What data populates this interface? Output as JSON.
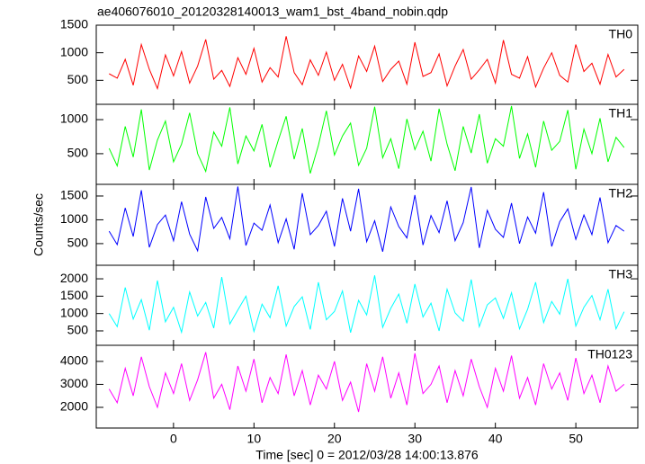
{
  "chart_data": {
    "type": "line",
    "title": "ae406076010_20120328140013_wam1_bst_4band_nobin.qdp",
    "xlabel": "Time [sec] 0 = 2012/03/28 14:00:13.876",
    "ylabel": "Counts/sec",
    "xlim": [
      -9.6,
      57.7
    ],
    "xticks": [
      0,
      10,
      20,
      30,
      40,
      50
    ],
    "x": [
      -8,
      -7,
      -6,
      -5,
      -4,
      -3,
      -2,
      -1,
      0,
      1,
      2,
      3,
      4,
      5,
      6,
      7,
      8,
      9,
      10,
      11,
      12,
      13,
      14,
      15,
      16,
      17,
      18,
      19,
      20,
      21,
      22,
      23,
      24,
      25,
      26,
      27,
      28,
      29,
      30,
      31,
      32,
      33,
      34,
      35,
      36,
      37,
      38,
      39,
      40,
      41,
      42,
      43,
      44,
      45,
      46,
      47,
      48,
      49,
      50,
      51,
      52,
      53,
      54,
      55,
      56
    ],
    "series": [
      {
        "name": "TH0",
        "color": "#ff0000",
        "ylim": [
          65,
          1500
        ],
        "yticks": [
          500,
          1000,
          1500
        ],
        "values": [
          620,
          540,
          880,
          410,
          1150,
          700,
          350,
          960,
          580,
          1020,
          450,
          760,
          1240,
          520,
          680,
          390,
          910,
          610,
          1080,
          470,
          730,
          560,
          1300,
          640,
          420,
          870,
          590,
          1010,
          500,
          790,
          360,
          940,
          660,
          1120,
          480,
          700,
          850,
          430,
          1190,
          570,
          640,
          980,
          400,
          760,
          1060,
          520,
          690,
          880,
          450,
          1230,
          610,
          540,
          930,
          380,
          720,
          1000,
          590,
          470,
          1150,
          660,
          810,
          430,
          970,
          560,
          700
        ]
      },
      {
        "name": "TH1",
        "color": "#00ff00",
        "ylim": [
          50,
          1225
        ],
        "yticks": [
          500,
          1000
        ],
        "values": [
          580,
          320,
          900,
          450,
          1150,
          260,
          700,
          980,
          380,
          640,
          1100,
          500,
          240,
          820,
          610,
          1180,
          350,
          760,
          540,
          930,
          300,
          690,
          1050,
          420,
          870,
          210,
          620,
          1130,
          480,
          760,
          950,
          330,
          580,
          1190,
          440,
          720,
          280,
          1010,
          560,
          830,
          390,
          1160,
          640,
          250,
          900,
          510,
          1080,
          360,
          720,
          610,
          1200,
          430,
          790,
          300,
          980,
          550,
          680,
          1140,
          270,
          860,
          500,
          1020,
          380,
          740,
          590
        ]
      },
      {
        "name": "TH2",
        "color": "#0000ff",
        "ylim": [
          45,
          1745
        ],
        "yticks": [
          500,
          1000,
          1500
        ],
        "values": [
          760,
          480,
          1250,
          650,
          1620,
          420,
          900,
          1100,
          560,
          1380,
          700,
          350,
          1480,
          820,
          1050,
          600,
          1700,
          460,
          930,
          780,
          1310,
          520,
          1020,
          380,
          1560,
          690,
          880,
          1180,
          440,
          1450,
          760,
          1650,
          540,
          980,
          330,
          1270,
          860,
          620,
          1520,
          470,
          1090,
          730,
          1400,
          560,
          940,
          1690,
          410,
          1200,
          800,
          630,
          1350,
          500,
          1060,
          720,
          1580,
          440,
          960,
          1230,
          590,
          1100,
          690,
          1470,
          520,
          880,
          760
        ]
      },
      {
        "name": "TH3",
        "color": "#00ffff",
        "ylim": [
          85,
          2390
        ],
        "yticks": [
          500,
          1000,
          1500,
          2000
        ],
        "values": [
          1000,
          620,
          1750,
          840,
          1400,
          520,
          1950,
          760,
          1180,
          460,
          1620,
          930,
          1320,
          580,
          2050,
          700,
          1100,
          1500,
          480,
          1270,
          880,
          1800,
          640,
          1200,
          1480,
          540,
          1900,
          820,
          1060,
          1650,
          450,
          1380,
          960,
          2100,
          600,
          1150,
          1560,
          720,
          1850,
          900,
          1300,
          500,
          1700,
          1020,
          780,
          1980,
          620,
          1250,
          1450,
          860,
          1600,
          560,
          1120,
          1900,
          740,
          1350,
          980,
          2000,
          640,
          1180,
          1520,
          820,
          1700,
          560,
          1050
        ]
      },
      {
        "name": "TH0123",
        "color": "#ff00ff",
        "ylim": [
          1100,
          4700
        ],
        "yticks": [
          2000,
          3000,
          4000
        ],
        "values": [
          2800,
          2200,
          3700,
          2500,
          4200,
          2900,
          2000,
          3500,
          2600,
          3900,
          2300,
          3200,
          4400,
          2400,
          3000,
          1900,
          3800,
          2700,
          4100,
          2200,
          3300,
          2600,
          4300,
          2500,
          3600,
          2100,
          3400,
          2800,
          4000,
          2300,
          3100,
          1800,
          3900,
          2700,
          4200,
          2400,
          3500,
          2100,
          4350,
          2600,
          3000,
          3800,
          2200,
          3600,
          2500,
          4100,
          2900,
          2000,
          3700,
          2700,
          4250,
          2400,
          3300,
          2100,
          3900,
          2800,
          3500,
          2300,
          4150,
          2600,
          3400,
          2200,
          3800,
          2700,
          3000
        ]
      }
    ]
  }
}
